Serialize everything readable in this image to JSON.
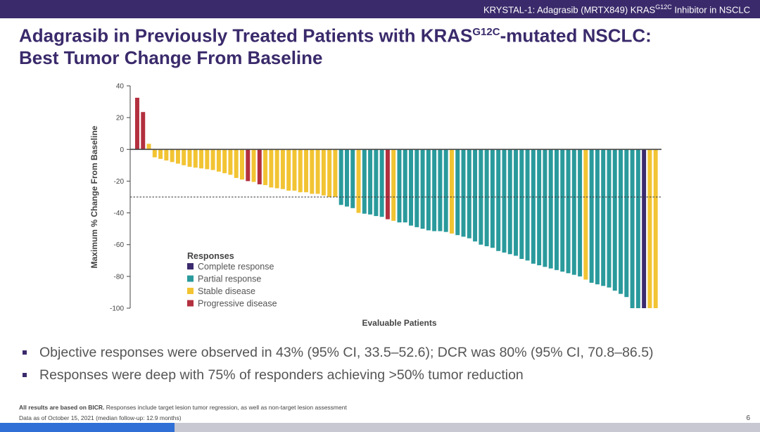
{
  "header": {
    "prefix": "KRYSTAL-1: Adagrasib (MRTX849) KRAS",
    "sup": "G12C",
    "suffix": " Inhibitor in NSCLC"
  },
  "title": {
    "line1_a": "Adagrasib in Previously Treated Patients with KRAS",
    "line1_sup": "G12C",
    "line1_b": "-mutated NSCLC:",
    "line2": "Best Tumor Change From Baseline"
  },
  "colors": {
    "complete": "#3b2a6e",
    "partial": "#2a9a9c",
    "stable": "#f2c433",
    "progressive": "#b3303f",
    "axis": "#444444",
    "brand": "#3a2a6b"
  },
  "chart_data": {
    "type": "bar",
    "xlabel": "Evaluable Patients",
    "ylabel": "Maximum % Change From Baseline",
    "ylim": [
      -100,
      40
    ],
    "yticks": [
      40,
      20,
      0,
      -20,
      -40,
      -60,
      -80,
      -100
    ],
    "reference_line": -30,
    "legend": {
      "title": "Responses",
      "position": "bottom-left",
      "items": [
        {
          "key": "CR",
          "label": "Complete response"
        },
        {
          "key": "PR",
          "label": "Partial response"
        },
        {
          "key": "SD",
          "label": "Stable disease"
        },
        {
          "key": "PD",
          "label": "Progressive disease"
        }
      ]
    },
    "values": [
      32.5,
      23.5,
      3.5,
      -5,
      -6,
      -7,
      -8,
      -9,
      -10,
      -11,
      -11.5,
      -12,
      -12.5,
      -13,
      -14,
      -15,
      -16,
      -18,
      -19,
      -20,
      -20.5,
      -22,
      -22.5,
      -24,
      -24.5,
      -25,
      -26,
      -26,
      -27,
      -27,
      -28,
      -28,
      -29,
      -30,
      -30,
      -35,
      -36,
      -37,
      -40,
      -40.5,
      -41,
      -42,
      -42.5,
      -44,
      -45,
      -46,
      -46,
      -48,
      -49,
      -50,
      -51,
      -51.5,
      -51.5,
      -52,
      -53,
      -54,
      -55,
      -56,
      -58,
      -60,
      -61,
      -62,
      -64,
      -65,
      -66,
      -67,
      -69,
      -70,
      -72,
      -73,
      -74,
      -75,
      -76,
      -77,
      -78,
      -79,
      -80,
      -82,
      -84,
      -85,
      -86,
      -87,
      -89,
      -91,
      -93,
      -100,
      -100,
      -100,
      -100,
      -100
    ],
    "responses": [
      "PD",
      "PD",
      "SD",
      "SD",
      "SD",
      "SD",
      "SD",
      "SD",
      "SD",
      "SD",
      "SD",
      "SD",
      "SD",
      "SD",
      "SD",
      "SD",
      "SD",
      "SD",
      "SD",
      "PD",
      "SD",
      "PD",
      "SD",
      "SD",
      "SD",
      "SD",
      "SD",
      "SD",
      "SD",
      "SD",
      "SD",
      "SD",
      "SD",
      "SD",
      "SD",
      "PR",
      "PR",
      "PR",
      "SD",
      "PR",
      "PR",
      "PR",
      "PR",
      "PD",
      "SD",
      "PR",
      "PR",
      "PR",
      "PR",
      "PR",
      "PR",
      "PR",
      "PR",
      "PR",
      "SD",
      "PR",
      "PR",
      "PR",
      "PR",
      "PR",
      "PR",
      "PR",
      "PR",
      "PR",
      "PR",
      "PR",
      "PR",
      "PR",
      "PR",
      "PR",
      "PR",
      "PR",
      "PR",
      "PR",
      "PR",
      "PR",
      "PR",
      "SD",
      "PR",
      "PR",
      "PR",
      "PR",
      "PR",
      "PR",
      "PR",
      "PR",
      "PR",
      "CR",
      "SD",
      "SD"
    ]
  },
  "bullets": [
    "Objective responses were observed in 43% (95% CI, 33.5–52.6); DCR was 80% (95% CI, 70.8–86.5)",
    "Responses were deep with 75% of responders achieving >50% tumor reduction"
  ],
  "footnote": {
    "bold": "All results are based on BICR.",
    "rest": " Responses include target lesion tumor regression, as well as non-target lesion assessment",
    "line2": "Data as of October 15, 2021 (median follow-up: 12.9 months)"
  },
  "page_number": "6",
  "slide_progress": 0.23
}
